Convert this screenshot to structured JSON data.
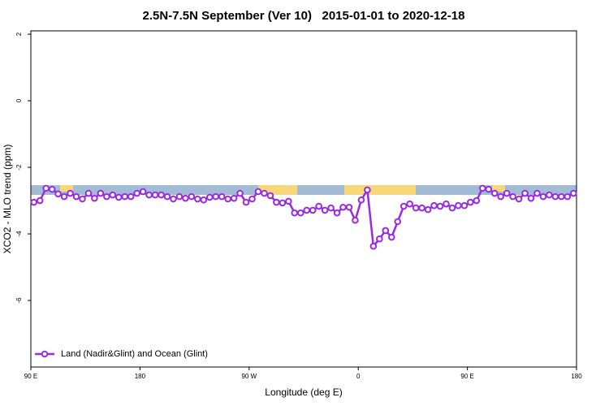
{
  "chart_data": {
    "type": "line",
    "title": "2.5N-7.5N September (Ver 10)   2015-01-01 to 2020-12-18",
    "x_label": "Longitude (deg E)",
    "y_label": "XCO2 - MLO trend (ppm)",
    "xlim": [
      90,
      540
    ],
    "ylim": [
      -8,
      2.1
    ],
    "xticks": [
      {
        "value": 90,
        "label": "90 E"
      },
      180,
      {
        "value": 270,
        "label": "90 W"
      },
      {
        "value": 360,
        "label": "0"
      },
      {
        "value": 450,
        "label": "90 E"
      },
      {
        "value": 540,
        "label": "180"
      }
    ],
    "yticks": [
      2,
      0,
      -2,
      -4,
      -6
    ],
    "legend": "lower left",
    "x": [
      92.5,
      97.5,
      102.5,
      107.5,
      112.5,
      117.5,
      122.5,
      127.5,
      132.5,
      137.5,
      142.5,
      147.5,
      152.5,
      157.5,
      162.5,
      167.5,
      172.5,
      177.5,
      182.5,
      187.5,
      192.5,
      197.5,
      202.5,
      207.5,
      212.5,
      217.5,
      222.5,
      227.5,
      232.5,
      237.5,
      242.5,
      247.5,
      252.5,
      257.5,
      262.5,
      267.5,
      272.5,
      277.5,
      282.5,
      287.5,
      292.5,
      297.5,
      302.5,
      307.5,
      312.5,
      317.5,
      322.5,
      327.5,
      332.5,
      337.5,
      342.5,
      347.5,
      352.5,
      357.5,
      362.5,
      367.5,
      372.5,
      377.5,
      382.5,
      387.5,
      392.5,
      397.5,
      402.5,
      407.5,
      412.5,
      417.5,
      422.5,
      427.5,
      432.5,
      437.5,
      442.5,
      447.5,
      452.5,
      457.5,
      462.5,
      467.5,
      472.5,
      477.5,
      482.5,
      487.5,
      492.5,
      497.5,
      502.5,
      507.5,
      512.5,
      517.5,
      522.5,
      527.5,
      532.5,
      537.5
    ],
    "series": [
      {
        "name": "Land (Nadir&Glint) and Ocean (Glint)",
        "color": "#9a2be2",
        "values": [
          -3.05,
          -3.0,
          -2.63,
          -2.66,
          -2.8,
          -2.88,
          -2.78,
          -2.88,
          -2.95,
          -2.78,
          -2.93,
          -2.78,
          -2.88,
          -2.83,
          -2.9,
          -2.88,
          -2.88,
          -2.78,
          -2.73,
          -2.83,
          -2.83,
          -2.83,
          -2.88,
          -2.95,
          -2.88,
          -2.93,
          -2.88,
          -2.95,
          -2.98,
          -2.9,
          -2.88,
          -2.88,
          -2.95,
          -2.93,
          -2.78,
          -3.05,
          -2.95,
          -2.73,
          -2.78,
          -2.85,
          -3.05,
          -3.07,
          -3.02,
          -3.37,
          -3.37,
          -3.29,
          -3.29,
          -3.17,
          -3.29,
          -3.22,
          -3.37,
          -3.2,
          -3.2,
          -3.59,
          -2.98,
          -2.68,
          -4.37,
          -4.15,
          -3.9,
          -4.1,
          -3.63,
          -3.17,
          -3.1,
          -3.22,
          -3.22,
          -3.27,
          -3.15,
          -3.17,
          -3.1,
          -3.22,
          -3.15,
          -3.15,
          -3.05,
          -3.0,
          -2.63,
          -2.66,
          -2.78,
          -2.88,
          -2.78,
          -2.88,
          -2.95,
          -2.78,
          -2.93,
          -2.78,
          -2.88,
          -2.83,
          -2.88,
          -2.88,
          -2.88,
          -2.78
        ]
      }
    ]
  }
}
